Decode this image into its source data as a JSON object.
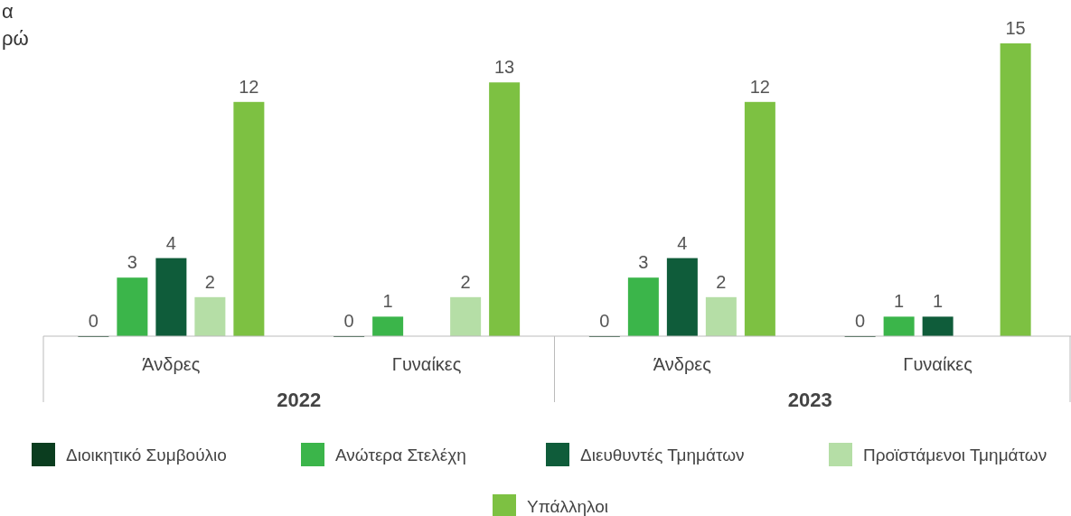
{
  "chart_data": {
    "type": "bar",
    "categories": [
      "Άνδρες",
      "Γυναίκες",
      "Άνδρες",
      "Γυναίκες"
    ],
    "series": [
      {
        "name": "Διοικητικό Συμβούλιο",
        "color": "#0b3d1f",
        "values": [
          0,
          0,
          0,
          0
        ]
      },
      {
        "name": "Ανώτερα Στελέχη",
        "color": "#3bb54a",
        "values": [
          3,
          1,
          3,
          1
        ]
      },
      {
        "name": "Διευθυντές Τμημάτων",
        "color": "#0f5c3a",
        "values": [
          4,
          null,
          4,
          1
        ]
      },
      {
        "name": "Προϊστάμενοι Τμημάτων",
        "color": "#b5dea6",
        "values": [
          2,
          2,
          2,
          null
        ]
      },
      {
        "name": "Υπάλληλοι",
        "color": "#7dc142",
        "values": [
          12,
          13,
          12,
          15
        ]
      }
    ],
    "ylim": [
      0,
      15
    ],
    "data_labels": true,
    "legend": "bottom",
    "annotations": [
      "α",
      "ρώ",
      "2022",
      "2023"
    ]
  }
}
